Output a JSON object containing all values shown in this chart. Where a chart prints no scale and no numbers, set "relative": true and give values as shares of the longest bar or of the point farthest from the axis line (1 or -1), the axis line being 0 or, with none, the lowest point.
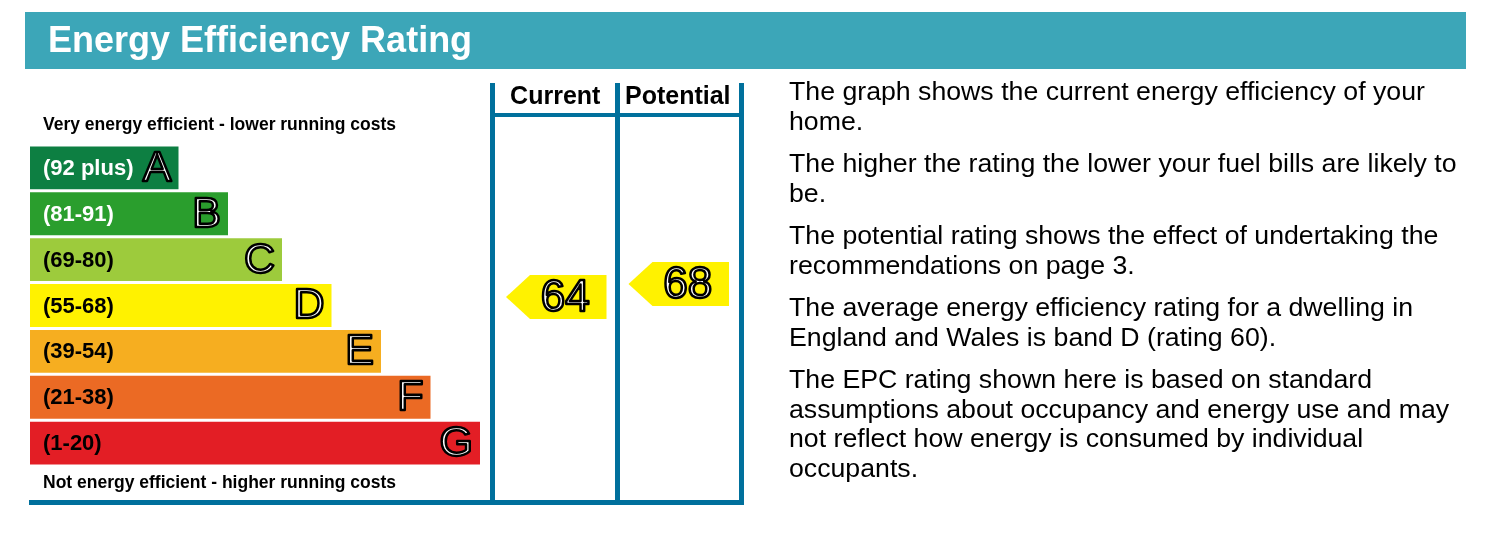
{
  "chart_data": [
    {
      "type": "bar",
      "title": "Energy Efficiency Rating",
      "orientation": "horizontal",
      "relative": true,
      "categories": [
        "A",
        "B",
        "C",
        "D",
        "E",
        "F",
        "G"
      ],
      "values": [
        0.33,
        0.44,
        0.56,
        0.67,
        0.78,
        0.89,
        1
      ],
      "colors": [
        "#0d7f42",
        "#2a9e2d",
        "#9dcb3c",
        "#fff200",
        "#f6ae20",
        "#eb6a24",
        "#e31e25"
      ],
      "annotations": [
        "Very energy efficient - lower running costs",
        "Not energy efficient - higher running costs",
        "(92 plus)",
        "(81-91)",
        "(69-80)",
        "(55-68)",
        "(39-54)",
        "(21-38)",
        "(1-20)"
      ]
    },
    {
      "type": "other",
      "categories": [
        "Current",
        "Potential"
      ],
      "values": [
        64,
        68
      ],
      "colors": [
        "#fff200",
        "#fff200"
      ],
      "data_labels": true
    },
    {
      "type": "other",
      "annotations": [
        "The graph shows the current energy efficiency of your home.",
        "The higher the rating the lower your fuel bills are likely to be.",
        "The potential rating shows the effect of undertaking the recommendations on page 3.",
        "The average energy efficiency rating for a dwelling in England and Wales is band D (rating 60).",
        "The EPC rating shown here is based on standard assumptions about occupancy and energy use and may not reflect how energy is consumed by individual occupants."
      ]
    }
  ]
}
